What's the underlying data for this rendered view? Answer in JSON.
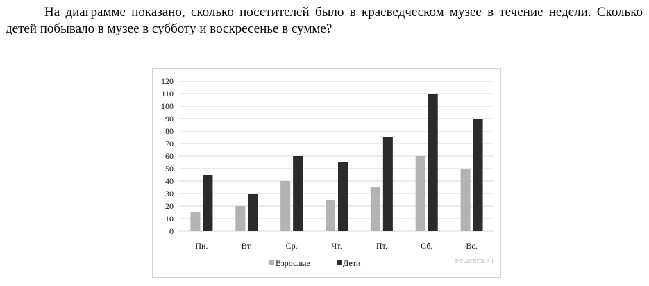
{
  "question": {
    "text": "На диаграмме показано, сколько посетителей было в краеведческом музее в течение недели. Сколько детей побывало в музее в субботу и воскресенье в сумме?"
  },
  "watermark": "РЕШУЕГЭ.РФ",
  "colors": {
    "adults": "#b3b3b3",
    "children": "#2b2b2b",
    "grid": "#d9d9d9"
  },
  "chart_data": {
    "type": "bar",
    "categories": [
      "Пн.",
      "Вт.",
      "Ср.",
      "Чт.",
      "Пт.",
      "Сб.",
      "Вс."
    ],
    "series": [
      {
        "name": "Взрослые",
        "values": [
          15,
          20,
          40,
          25,
          35,
          60,
          50
        ]
      },
      {
        "name": "Дети",
        "values": [
          45,
          30,
          60,
          55,
          75,
          110,
          90
        ]
      }
    ],
    "yticks": [
      0,
      10,
      20,
      30,
      40,
      50,
      60,
      70,
      80,
      90,
      100,
      110,
      120
    ],
    "ylim": [
      0,
      120
    ],
    "grid": true,
    "legend": "bottom"
  }
}
